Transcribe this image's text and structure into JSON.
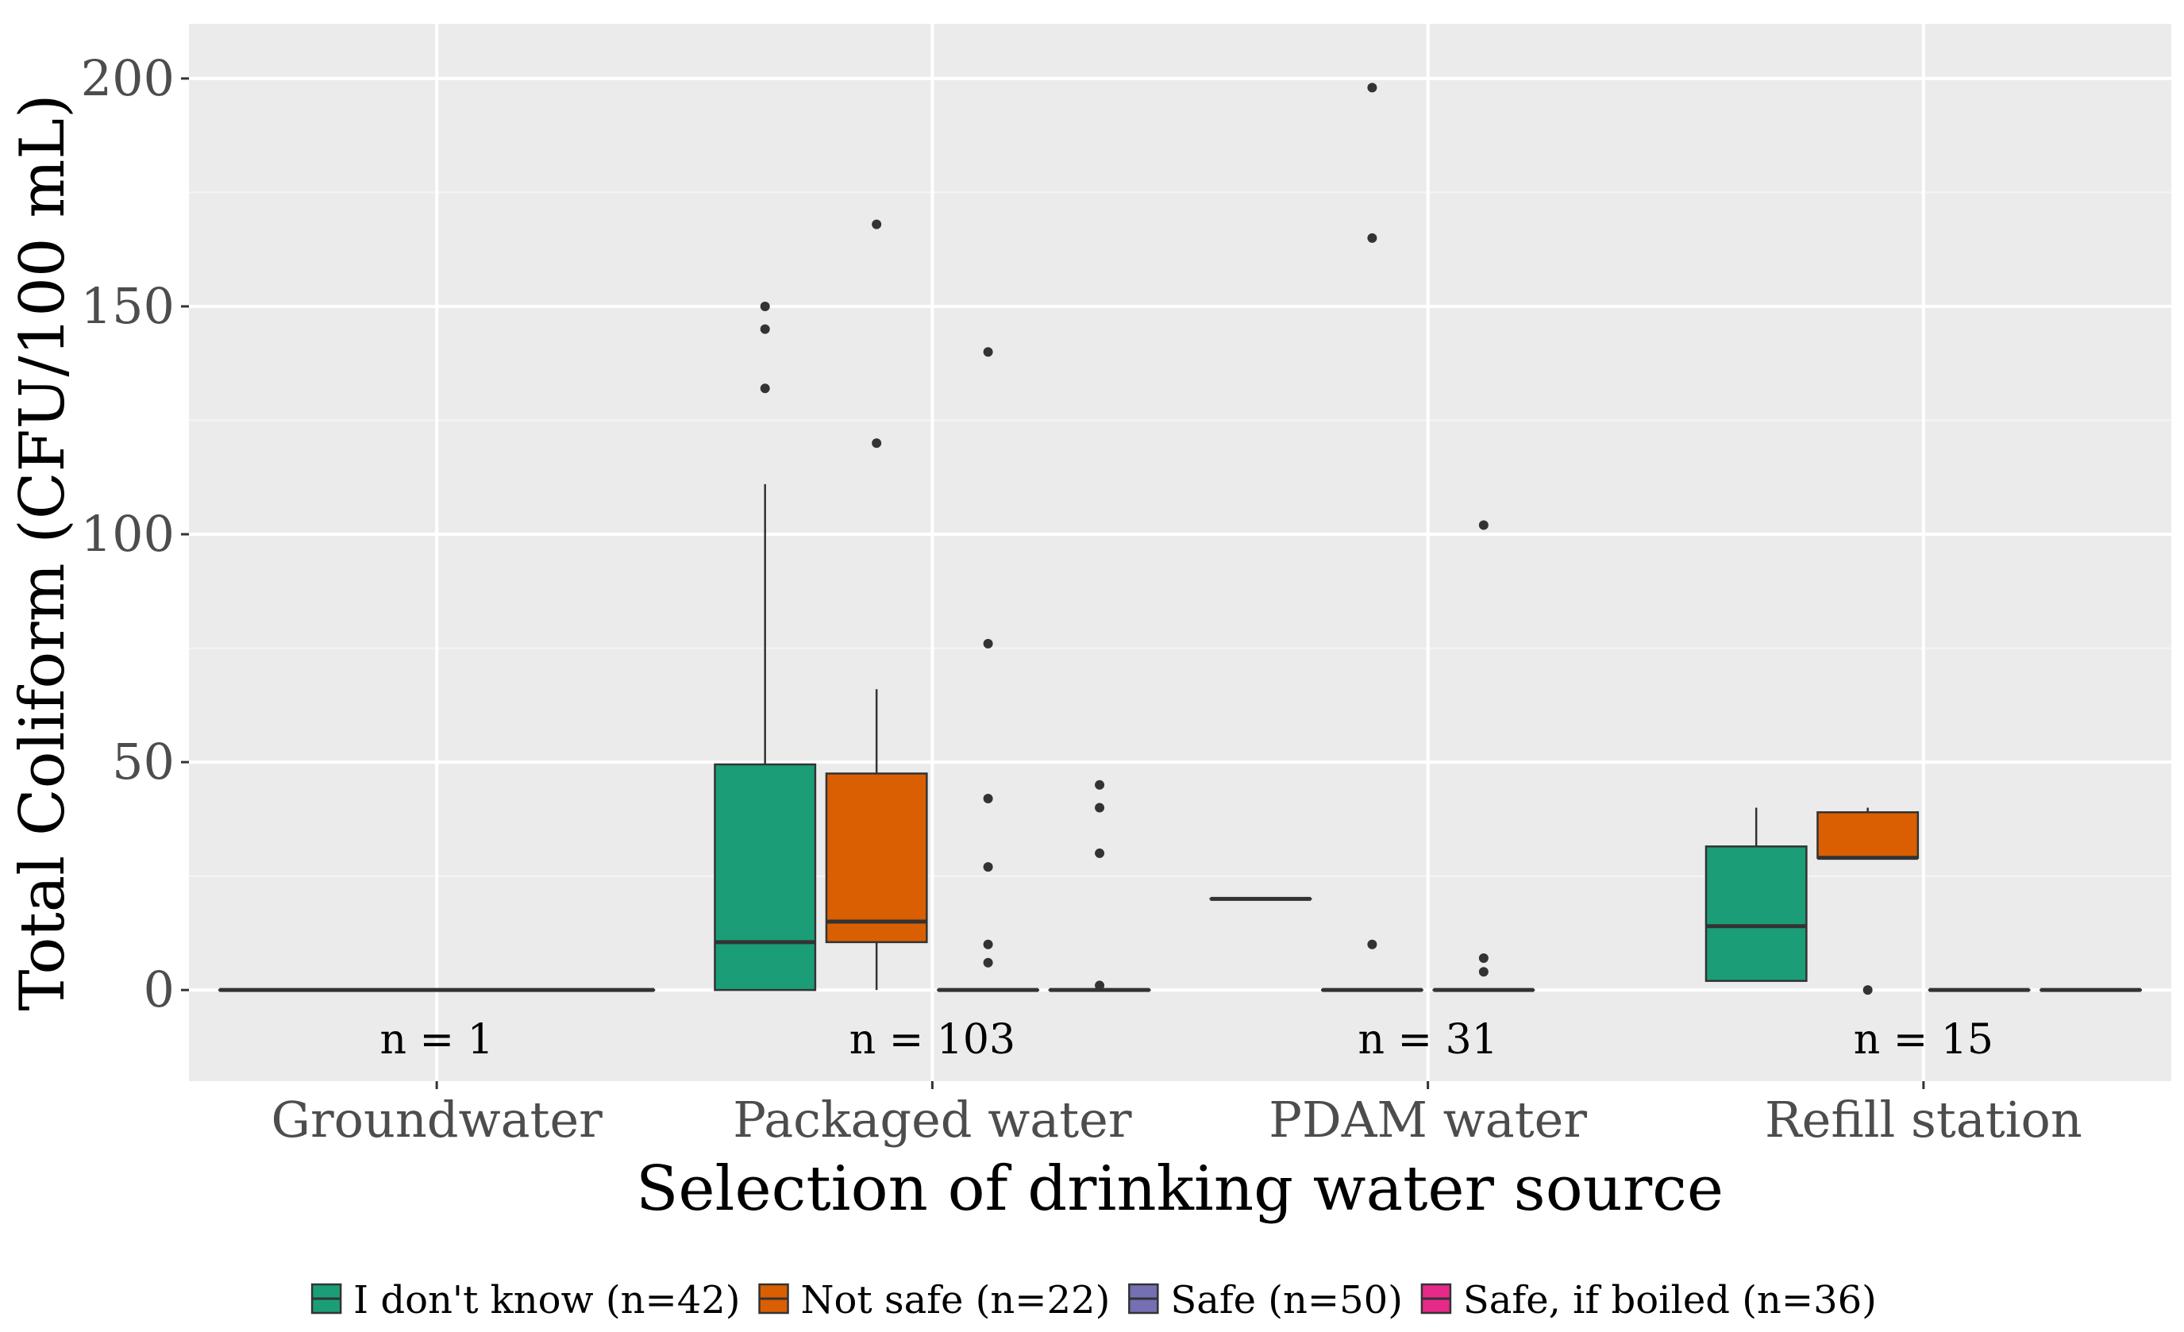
{
  "chart_data": {
    "type": "boxplot",
    "xlabel": "Selection of drinking water source",
    "ylabel": "Total Coliform (CFU/100 mL)",
    "ylim": [
      -20,
      212
    ],
    "yticks": [
      0,
      50,
      100,
      150,
      200
    ],
    "categories": [
      "Groundwater",
      "Packaged water",
      "PDAM water",
      "Refill station"
    ],
    "n_labels": [
      "n = 1",
      "n = 103",
      "n = 31",
      "n = 15"
    ],
    "grid": true,
    "legend_position": "bottom",
    "series": [
      {
        "name": "I don't know (n=42)",
        "color": "#1b9e77"
      },
      {
        "name": "Not safe (n=22)",
        "color": "#d95f02"
      },
      {
        "name": "Safe (n=50)",
        "color": "#7570b3"
      },
      {
        "name": "Safe, if boiled (n=36)",
        "color": "#e7298a"
      }
    ],
    "boxes": [
      {
        "category": 0,
        "slot_start": 0,
        "slot_count": 4,
        "series": 2,
        "min": 0,
        "q1": 0,
        "median": 0,
        "q3": 0,
        "max": 0,
        "outliers": []
      },
      {
        "category": 1,
        "slot_start": 0,
        "slot_count": 1,
        "series": 0,
        "min": 0,
        "q1": 0,
        "median": 10.5,
        "q3": 49.5,
        "max": 111,
        "outliers": [
          132,
          145,
          150
        ]
      },
      {
        "category": 1,
        "slot_start": 1,
        "slot_count": 1,
        "series": 1,
        "min": 0,
        "q1": 10.5,
        "median": 15,
        "q3": 47.5,
        "max": 66,
        "outliers": [
          120,
          168
        ]
      },
      {
        "category": 1,
        "slot_start": 2,
        "slot_count": 1,
        "series": 2,
        "min": 0,
        "q1": 0,
        "median": 0,
        "q3": 0,
        "max": 0,
        "outliers": [
          6,
          10,
          27,
          42,
          76,
          140
        ]
      },
      {
        "category": 1,
        "slot_start": 3,
        "slot_count": 1,
        "series": 3,
        "min": 0,
        "q1": 0,
        "median": 0,
        "q3": 0,
        "max": 0,
        "outliers": [
          1,
          30,
          40,
          45
        ]
      },
      {
        "category": 2,
        "slot_start": 0,
        "slot_count": 1,
        "series": 1,
        "min": 20,
        "q1": 20,
        "median": 20,
        "q3": 20,
        "max": 20,
        "outliers": []
      },
      {
        "category": 2,
        "slot_start": 1,
        "slot_count": 1,
        "series": 2,
        "min": 0,
        "q1": 0,
        "median": 0,
        "q3": 0,
        "max": 0,
        "outliers": [
          10,
          165,
          198
        ]
      },
      {
        "category": 2,
        "slot_start": 2,
        "slot_count": 1,
        "series": 3,
        "min": 0,
        "q1": 0,
        "median": 0,
        "q3": 0,
        "max": 0,
        "outliers": [
          4,
          7,
          102
        ]
      },
      {
        "category": 3,
        "slot_start": 0,
        "slot_count": 1,
        "series": 0,
        "min": 2,
        "q1": 2,
        "median": 14,
        "q3": 31.5,
        "max": 40,
        "outliers": []
      },
      {
        "category": 3,
        "slot_start": 1,
        "slot_count": 1,
        "series": 1,
        "min": 29,
        "q1": 29,
        "median": 29,
        "q3": 39,
        "max": 40,
        "outliers": [
          0
        ]
      },
      {
        "category": 3,
        "slot_start": 2,
        "slot_count": 1,
        "series": 2,
        "min": 0,
        "q1": 0,
        "median": 0,
        "q3": 0,
        "max": 0,
        "outliers": []
      },
      {
        "category": 3,
        "slot_start": 3,
        "slot_count": 1,
        "series": 3,
        "min": 0,
        "q1": 0,
        "median": 0,
        "q3": 0,
        "max": 0,
        "outliers": []
      }
    ]
  }
}
